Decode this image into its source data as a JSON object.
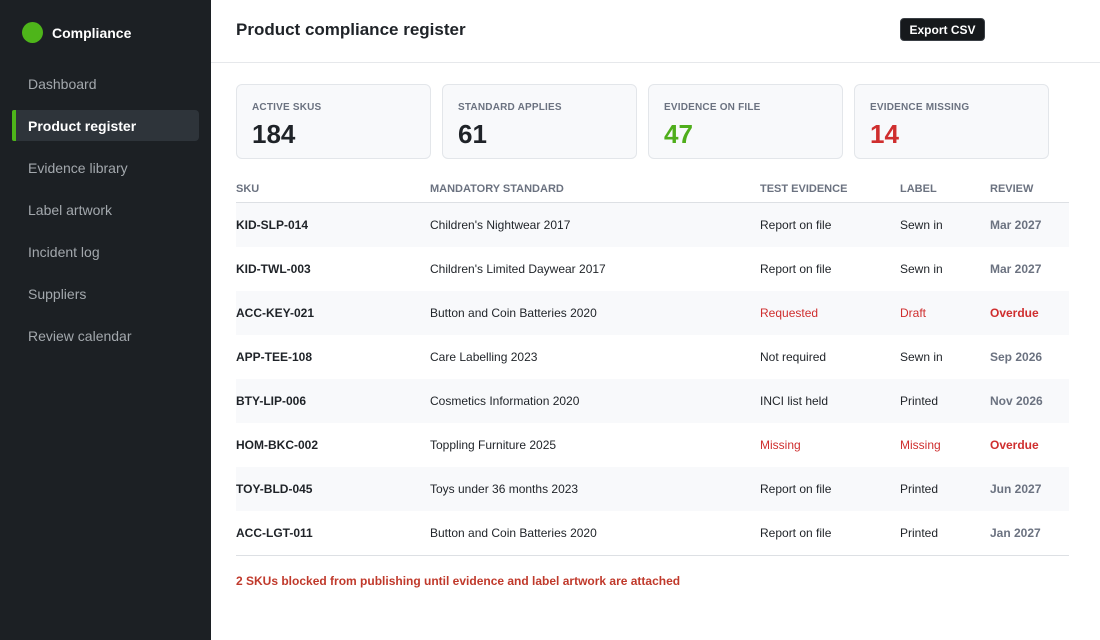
{
  "sidebar": {
    "brand": "Compliance",
    "items": [
      {
        "label": "Dashboard",
        "active": false
      },
      {
        "label": "Product register",
        "active": true
      },
      {
        "label": "Evidence library",
        "active": false
      },
      {
        "label": "Label artwork",
        "active": false
      },
      {
        "label": "Incident log",
        "active": false
      },
      {
        "label": "Suppliers",
        "active": false
      },
      {
        "label": "Review calendar",
        "active": false
      }
    ]
  },
  "header": {
    "title": "Product compliance register",
    "export_label": "Export CSV"
  },
  "stats": [
    {
      "label": "ACTIVE SKUS",
      "value": "184"
    },
    {
      "label": "STANDARD APPLIES",
      "value": "61"
    },
    {
      "label": "EVIDENCE ON FILE",
      "value": "47"
    },
    {
      "label": "EVIDENCE MISSING",
      "value": "14"
    }
  ],
  "table": {
    "columns": [
      "SKU",
      "MANDATORY STANDARD",
      "TEST EVIDENCE",
      "LABEL",
      "REVIEW"
    ],
    "rows": [
      {
        "sku": "KID-SLP-014",
        "standard": "Children's Nightwear 2017",
        "evidence": "Report on file",
        "label": "Sewn in",
        "review": "Mar 2027"
      },
      {
        "sku": "KID-TWL-003",
        "standard": "Children's Limited Daywear 2017",
        "evidence": "Report on file",
        "label": "Sewn in",
        "review": "Mar 2027"
      },
      {
        "sku": "ACC-KEY-021",
        "standard": "Button and Coin Batteries 2020",
        "evidence": "Requested",
        "label": "Draft",
        "review": "Overdue"
      },
      {
        "sku": "APP-TEE-108",
        "standard": "Care Labelling 2023",
        "evidence": "Not required",
        "label": "Sewn in",
        "review": "Sep 2026"
      },
      {
        "sku": "BTY-LIP-006",
        "standard": "Cosmetics Information 2020",
        "evidence": "INCI list held",
        "label": "Printed",
        "review": "Nov 2026"
      },
      {
        "sku": "HOM-BKC-002",
        "standard": "Toppling Furniture 2025",
        "evidence": "Missing",
        "label": "Missing",
        "review": "Overdue"
      },
      {
        "sku": "TOY-BLD-045",
        "standard": "Toys under 36 months 2023",
        "evidence": "Report on file",
        "label": "Printed",
        "review": "Jun 2027"
      },
      {
        "sku": "ACC-LGT-011",
        "standard": "Button and Coin Batteries 2020",
        "evidence": "Report on file",
        "label": "Printed",
        "review": "Jan 2027"
      }
    ]
  },
  "footnote": "2 SKUs blocked from publishing until evidence and label artwork are attached",
  "colors": {
    "accent": "#4eb51a",
    "danger": "#cf2e2e",
    "sidebar_bg": "#1c2024"
  }
}
